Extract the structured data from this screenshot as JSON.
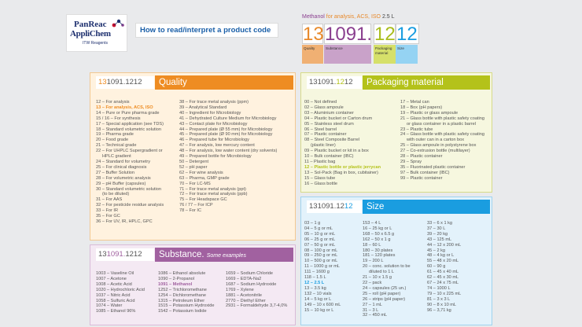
{
  "logo": {
    "line1": "PanReac",
    "line2": "AppliChem",
    "line3": "ITW Reagents"
  },
  "howto": "How to read/interpret a product code",
  "example": {
    "product": "Methanol",
    "grade": "for analysis, ACS, ISO",
    "size": "2.5 L",
    "digits": {
      "quality": "13",
      "substance": "1091.",
      "packaging": "12",
      "size": "12"
    },
    "labels": {
      "quality": "Quality",
      "substance": "Substance",
      "packaging": "Packaging material",
      "size": "Size"
    }
  },
  "colors": {
    "quality": "#ee8c22",
    "substance": "#a161a0",
    "packaging": "#b4c21a",
    "size": "#1a9de0"
  },
  "quality": {
    "code": {
      "a": "13",
      "b": "1091.1212"
    },
    "title": "Quality",
    "col1": [
      "12 – For analysis",
      "13 – For analysis, ACS, ISO",
      "14 – Pure or Pure pharma grade",
      "15 / 16 – For synthesis",
      "17 – Special application (see TDS)",
      "18 – Standard volumetric solution",
      "19 – Pharma grade",
      "20 – Food grade",
      "21 – Technical grade",
      "22 – For UHPLC Supergradient or",
      "HPLC gradient",
      "24 – Standard for volumetry",
      "25 – For clinical diagnosis",
      "27 – Buffer Solution",
      "28 – For volumetric analysis",
      "29 – pH Buffer (capsules)",
      "30 – Standard volumetric solution",
      "(to be diluted)",
      "31 – For AAS",
      "32 – For pesticide residue analysis",
      "33 – For IR",
      "35 – For GC",
      "36 – For UV, IR, HPLC, GPC"
    ],
    "col2": [
      "38 – For trace metal analysis (ppm)",
      "39 – Analytical Standard",
      "40 – Ingredient for Microbiology",
      "41 – Dehydrated Culture Medium for Microbiology",
      "43 – Contact plate for Microbiology",
      "44 – Prepared plate (Ø 55 mm) for Microbiology",
      "45 – Prepared plate (Ø 90 mm) for Microbiology",
      "46 – Prepared tube for Microbiology",
      "47 – For analysis, low mercury content",
      "48 – For analysis, low water content (dry solvents)",
      "49 – Prepared bottle for Microbiology",
      "50 – Detergent",
      "52 – pH paper",
      "62 – For wine analysis",
      "63 – Pharma, GMP grade",
      "70 – For LC-MS",
      "71 – For trace metal analysis (ppt)",
      "72 – For trace metal analysis (ppb)",
      "75 – For Headspace GC",
      "76 / 77 – For ICP",
      "78 – For IC"
    ]
  },
  "substance": {
    "code": {
      "a": "13",
      "b": "1091.",
      "c": "1212"
    },
    "title": "Substance.",
    "subtitle": "Some examples",
    "col1": [
      "1003 – Vaseline Oil",
      "1007 – Acetone",
      "1008 – Acetic Acid",
      "1020 – Hydrochloric Acid",
      "1037 – Nitric Acid",
      "1058 – Sulfuric Acid",
      "1074 – Water",
      "1085 – Ethanol 96%"
    ],
    "col2": [
      "1086 – Ethanol absolute",
      "1090 – 2-Propanol",
      "1091 – Methanol",
      "1252 – Trichloromethane",
      "1254 – Dichloromethane",
      "1315 – Petroleum Ether",
      "1515 – Potassium Hydroxide",
      "1542 – Potassium Iodide"
    ],
    "col3": [
      "1659 – Sodium Chloride",
      "1669 – EDTA-Na2",
      "1687 – Sodium Hydroxide",
      "1769 – Xylene",
      "1881 – Acetonitrile",
      "2770 – Diethyl Ether",
      "2931 – Formaldehyde 3,7-4,0%"
    ]
  },
  "packaging": {
    "code": {
      "a": "131091.",
      "b": "12",
      "c": "12"
    },
    "title": "Packaging material",
    "col1": [
      "00 – Not defined",
      "02 – Glass ampoule",
      "03 – Aluminium container",
      "04 – Plastic bucket or Carton drum",
      "05 – Stainless steel drum",
      "06 – Steel barrel",
      "07 – Plastic container",
      "08 – Steel Composite Barrel",
      "(plastic liner)",
      "09 – Plastic bucket or kit in a box",
      "10 – Bulk container (IBC)",
      "11 – Plastic bag",
      "12 – Plastic bottle or plastic jerrycan",
      "13 – Sol-Pack (Bag in box, cubitainer)",
      "15 – Glass tube",
      "16 – Glass bottle"
    ],
    "col2": [
      "17 – Metal can",
      "18 – Box (pH papers)",
      "19 – Plastic or glass ampoule",
      "21 – Glass bottle with plastic safety coating",
      "or glass container in a plastic barrel",
      "23 – Plastic tube",
      "24 – Glass bottle with plastic safety coating",
      "with outer can in a carton box",
      "25 – Glass ampoule in polystyrene box",
      "27 – Co-extrusion bottle (multilayer)",
      "28 – Plastic container",
      "29 – Spray",
      "35 – Fluorinated plastic container",
      "97 – Bulk container (IBC)",
      "99 – Plastic container"
    ]
  },
  "size": {
    "code": {
      "a": "131091.12",
      "b": "12"
    },
    "title": "Size",
    "col1": [
      "03 – 1 g",
      "04 – 5 g or mL",
      "05 – 10 g or mL",
      "06 – 25 g or mL",
      "07 – 50 g or mL",
      "08 – 100 g or mL",
      "09 – 250 g or mL",
      "10 – 500 g or mL",
      "11 – 1000 g or mL",
      "111 – 1600 g",
      "118 – 1.5 L",
      "12 – 2.5 L",
      "13 – 3.5 kg",
      "132 – 10 vials",
      "14 – 5 kg or L",
      "149 – 10 x 600 mL",
      "15 – 10 kg or L"
    ],
    "col2": [
      "153 – 4 L",
      "16 – 25 kg or L",
      "168 – 50 x 6.5 g",
      "162 – 50 x 1 g",
      "18 – 60 L",
      "180 – 30 plates",
      "181 – 120 plates",
      "19 – 200 L",
      "20 – conc. solution to be",
      "diluted to 1 L",
      "21 – 10 x 1.5 g",
      "22 – pack",
      "24 – capsules (25 un.)",
      "25 – roll (pH paper)",
      "26 – strips (pH paper)",
      "27 – 1 mL",
      "31 – 3 L",
      "32 – 450 mL"
    ],
    "col3": [
      "33 – 6 x 1 kg",
      "37 – 30 L",
      "39 – 20 kg",
      "43 – 125 mL",
      "44 – 12 x 200 mL",
      "45 – 2 kg",
      "48 – 4 kg or L",
      "55 – 48 x 20 mL",
      "60 – 90 g",
      "61 – 45 x 40 mL",
      "62 – 45 x 30 mL",
      "67 – 24 x 75 mL",
      "74 – 1000 L",
      "79 – 10 x 225 mL",
      "81 – 3 x 3 L",
      "90 – 8 x 10 mL",
      "96 – 3,71 kg"
    ]
  }
}
